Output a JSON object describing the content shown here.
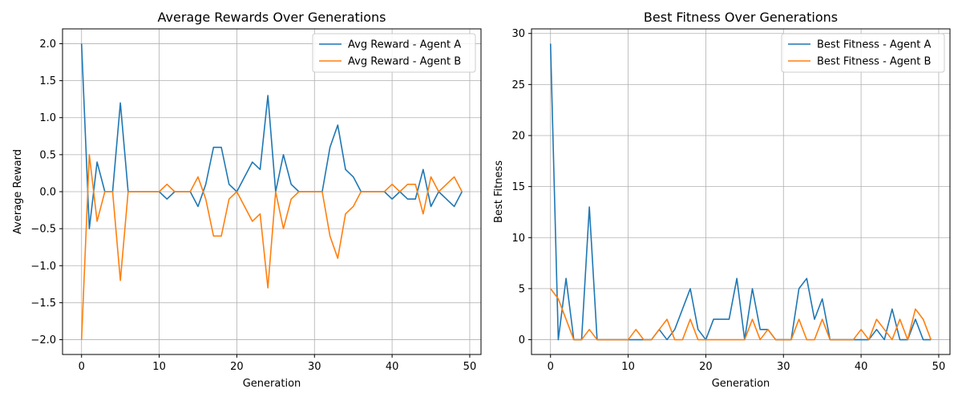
{
  "colors": {
    "series_a": "#1f77b4",
    "series_b": "#ff7f0e",
    "grid": "#b0b0b0"
  },
  "chart_data": [
    {
      "type": "line",
      "title": "Average Rewards Over Generations",
      "xlabel": "Generation",
      "ylabel": "Average Reward",
      "xlim": [
        -2.45,
        51.45
      ],
      "ylim": [
        -2.2,
        2.2
      ],
      "xticks": [
        0,
        10,
        20,
        30,
        40,
        50
      ],
      "yticks": [
        -2.0,
        -1.5,
        -1.0,
        -0.5,
        0.0,
        0.5,
        1.0,
        1.5,
        2.0
      ],
      "grid": true,
      "legend_position": "upper-right",
      "x": [
        0,
        1,
        2,
        3,
        4,
        5,
        6,
        7,
        8,
        9,
        10,
        11,
        12,
        13,
        14,
        15,
        16,
        17,
        18,
        19,
        20,
        21,
        22,
        23,
        24,
        25,
        26,
        27,
        28,
        29,
        30,
        31,
        32,
        33,
        34,
        35,
        36,
        37,
        38,
        39,
        40,
        41,
        42,
        43,
        44,
        45,
        46,
        47,
        48,
        49
      ],
      "series": [
        {
          "name": "Avg Reward - Agent A",
          "color": "#1f77b4",
          "values": [
            2.0,
            -0.5,
            0.4,
            0.0,
            0.0,
            1.2,
            0.0,
            0.0,
            0.0,
            0.0,
            0.0,
            -0.1,
            0.0,
            0.0,
            0.0,
            -0.2,
            0.1,
            0.6,
            0.6,
            0.1,
            0.0,
            0.2,
            0.4,
            0.3,
            1.3,
            0.0,
            0.5,
            0.1,
            0.0,
            0.0,
            0.0,
            0.0,
            0.6,
            0.9,
            0.3,
            0.2,
            0.0,
            0.0,
            0.0,
            0.0,
            -0.1,
            0.0,
            -0.1,
            -0.1,
            0.3,
            -0.2,
            0.0,
            -0.1,
            -0.2,
            0.0
          ]
        },
        {
          "name": "Avg Reward - Agent B",
          "color": "#ff7f0e",
          "values": [
            -2.0,
            0.5,
            -0.4,
            0.0,
            0.0,
            -1.2,
            0.0,
            0.0,
            0.0,
            0.0,
            0.0,
            0.1,
            0.0,
            0.0,
            0.0,
            0.2,
            -0.1,
            -0.6,
            -0.6,
            -0.1,
            0.0,
            -0.2,
            -0.4,
            -0.3,
            -1.3,
            0.0,
            -0.5,
            -0.1,
            0.0,
            0.0,
            0.0,
            0.0,
            -0.6,
            -0.9,
            -0.3,
            -0.2,
            0.0,
            0.0,
            0.0,
            0.0,
            0.1,
            0.0,
            0.1,
            0.1,
            -0.3,
            0.2,
            0.0,
            0.1,
            0.2,
            0.0
          ]
        }
      ]
    },
    {
      "type": "line",
      "title": "Best Fitness Over Generations",
      "xlabel": "Generation",
      "ylabel": "Best Fitness",
      "xlim": [
        -2.45,
        51.45
      ],
      "ylim": [
        -1.45,
        30.45
      ],
      "xticks": [
        0,
        10,
        20,
        30,
        40,
        50
      ],
      "yticks": [
        0,
        5,
        10,
        15,
        20,
        25,
        30
      ],
      "grid": true,
      "legend_position": "upper-right",
      "x": [
        0,
        1,
        2,
        3,
        4,
        5,
        6,
        7,
        8,
        9,
        10,
        11,
        12,
        13,
        14,
        15,
        16,
        17,
        18,
        19,
        20,
        21,
        22,
        23,
        24,
        25,
        26,
        27,
        28,
        29,
        30,
        31,
        32,
        33,
        34,
        35,
        36,
        37,
        38,
        39,
        40,
        41,
        42,
        43,
        44,
        45,
        46,
        47,
        48,
        49
      ],
      "series": [
        {
          "name": "Best Fitness - Agent A",
          "color": "#1f77b4",
          "values": [
            29,
            0,
            6,
            0,
            0,
            13,
            0,
            0,
            0,
            0,
            0,
            0,
            0,
            0,
            1,
            0,
            1,
            3,
            5,
            1,
            0,
            2,
            2,
            2,
            6,
            0,
            5,
            1,
            1,
            0,
            0,
            0,
            5,
            6,
            2,
            4,
            0,
            0,
            0,
            0,
            0,
            0,
            1,
            0,
            3,
            0,
            0,
            2,
            0,
            0
          ]
        },
        {
          "name": "Best Fitness - Agent B",
          "color": "#ff7f0e",
          "values": [
            5,
            4,
            2,
            0,
            0,
            1,
            0,
            0,
            0,
            0,
            0,
            1,
            0,
            0,
            1,
            2,
            0,
            0,
            2,
            0,
            0,
            0,
            0,
            0,
            0,
            0,
            2,
            0,
            1,
            0,
            0,
            0,
            2,
            0,
            0,
            2,
            0,
            0,
            0,
            0,
            1,
            0,
            2,
            1,
            0,
            2,
            0,
            3,
            2,
            0
          ]
        }
      ]
    }
  ]
}
